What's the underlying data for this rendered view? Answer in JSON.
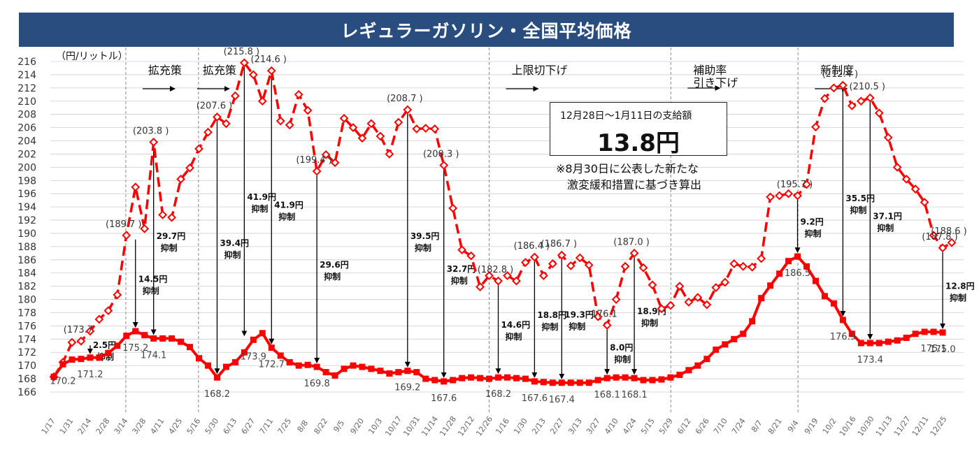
{
  "title": "レギュラーガソリン・全国平均価格",
  "unit_label": "（円/リットル）",
  "box": {
    "label": "12月28日～1月11日の支給額",
    "value": "13.8円"
  },
  "note": [
    "※8月30日に公表した新たな",
    "激変緩和措置に基づき算出"
  ],
  "colors": {
    "series": "#ff0000",
    "title_bg": "#2a4d80",
    "grid": "#cccccc",
    "arrow": "#000000"
  },
  "chart_data": {
    "type": "line",
    "title": "レギュラーガソリン・全国平均価格",
    "ylabel": "（円/リットル）",
    "ylim": [
      166,
      216
    ],
    "yticks": [
      166,
      168,
      170,
      172,
      174,
      176,
      178,
      180,
      182,
      184,
      186,
      188,
      190,
      192,
      194,
      196,
      198,
      200,
      202,
      204,
      206,
      208,
      210,
      212,
      214,
      216
    ],
    "x_tick_labels": [
      "1/17",
      "1/31",
      "2/14",
      "2/28",
      "3/14",
      "3/28",
      "4/11",
      "4/25",
      "5/16",
      "5/30",
      "6/13",
      "6/27",
      "7/11",
      "7/25",
      "8/8",
      "8/22",
      "9/5",
      "9/20",
      "10/3",
      "10/17",
      "10/31",
      "11/14",
      "11/28",
      "12/12",
      "12/26",
      "1/16",
      "1/30",
      "2/13",
      "2/27",
      "3/13",
      "3/27",
      "4/10",
      "4/24",
      "5/15",
      "5/29",
      "6/12",
      "6/26",
      "7/10",
      "7/24",
      "8/7",
      "8/21",
      "9/4",
      "9/19",
      "10/2",
      "10/16",
      "10/30",
      "11/13",
      "11/27",
      "12/11",
      "12/25"
    ],
    "period_lines_at": [
      "3/14",
      "5/16",
      "12/26",
      "5/29",
      "9/4"
    ],
    "period_labels": [
      {
        "text": "拡充策",
        "at": "3/28"
      },
      {
        "text": "拡充策",
        "at": "5/16"
      },
      {
        "text": "上限切下げ",
        "at": "1/16"
      },
      {
        "text": "補助率",
        "text2": "引き下げ",
        "at": "6/12"
      },
      {
        "text": "新制度",
        "at": "9/19"
      }
    ],
    "series": [
      {
        "name": "",
        "style": "dashed-diamond",
        "values": [
          168.3,
          170.5,
          173.5,
          173.7,
          175.2,
          177.0,
          178.3,
          180.7,
          189.7,
          197.0,
          190.7,
          203.8,
          192.8,
          192.4,
          198.2,
          199.9,
          202.8,
          205.3,
          207.6,
          206.6,
          210.8,
          215.8,
          214.0,
          210.0,
          214.6,
          207.0,
          206.4,
          211.0,
          208.6,
          199.4,
          201.9,
          200.7,
          207.4,
          206.0,
          204.4,
          206.6,
          204.7,
          202.0,
          206.8,
          208.7,
          205.8,
          205.9,
          205.8,
          200.3,
          193.8,
          187.5,
          186.6,
          181.9,
          183.6,
          182.8,
          183.6,
          182.8,
          185.6,
          186.4,
          183.6,
          185.4,
          186.7,
          185.1,
          186.3,
          185.2,
          177.4,
          176.1,
          180.0,
          185.0,
          187.0,
          184.8,
          182.2,
          178.6,
          179.1,
          182.0,
          179.6,
          180.3,
          179.2,
          181.8,
          182.6,
          185.4,
          185.0,
          184.9,
          186.2,
          195.5,
          195.7,
          196.0,
          195.7,
          197.4,
          206.1,
          210.4,
          212.0,
          212.4,
          209.3,
          210.0,
          210.5,
          208.2,
          204.5,
          200.0,
          198.2,
          196.7,
          194.7,
          189.7,
          187.8,
          188.6
        ]
      },
      {
        "name": "",
        "style": "solid-square",
        "values": [
          168.3,
          170.2,
          170.9,
          171.0,
          171.2,
          171.2,
          171.9,
          173.0,
          174.5,
          175.2,
          174.6,
          174.1,
          174.1,
          174.1,
          173.6,
          172.8,
          171.1,
          170.0,
          168.2,
          169.8,
          170.5,
          172.0,
          173.9,
          174.9,
          172.7,
          171.5,
          170.5,
          170.0,
          170.1,
          169.8,
          169.0,
          168.5,
          169.5,
          170.0,
          169.8,
          169.5,
          169.2,
          168.8,
          169.0,
          169.2,
          169.0,
          168.0,
          167.8,
          167.6,
          167.8,
          168.1,
          168.2,
          168.1,
          168.0,
          168.2,
          168.2,
          168.1,
          168.0,
          167.6,
          167.5,
          167.4,
          167.4,
          167.4,
          167.4,
          167.4,
          167.8,
          168.1,
          168.2,
          168.2,
          168.1,
          167.8,
          167.8,
          167.9,
          168.2,
          168.6,
          169.3,
          170.0,
          171.0,
          172.4,
          173.2,
          174.0,
          174.8,
          176.7,
          180.2,
          182.1,
          183.9,
          185.8,
          186.5,
          185.0,
          182.8,
          180.5,
          179.4,
          176.9,
          174.8,
          173.4,
          173.4,
          173.4,
          173.6,
          173.8,
          174.2,
          174.8,
          175.1,
          175.1,
          175.0
        ]
      }
    ],
    "data_labels": [
      {
        "series": 0,
        "i": 3,
        "text": "(173.7"
      },
      {
        "series": 0,
        "i": 8,
        "text": "(189.7 )"
      },
      {
        "series": 0,
        "i": 11,
        "text": "(203.8 )"
      },
      {
        "series": 0,
        "i": 18,
        "text": "(207.6 )"
      },
      {
        "series": 0,
        "i": 21,
        "text": "(215.8 )"
      },
      {
        "series": 0,
        "i": 24,
        "text": "(214.6 )"
      },
      {
        "series": 0,
        "i": 29,
        "text": "(199.4 )"
      },
      {
        "series": 0,
        "i": 39,
        "text": "(208.7 )"
      },
      {
        "series": 0,
        "i": 43,
        "text": "(200.3 )"
      },
      {
        "series": 0,
        "i": 49,
        "text": "(182.8 )"
      },
      {
        "series": 0,
        "i": 53,
        "text": "(186.4 )"
      },
      {
        "series": 0,
        "i": 56,
        "text": "(186.7 )"
      },
      {
        "series": 0,
        "i": 61,
        "text": "176.1"
      },
      {
        "series": 0,
        "i": 64,
        "text": "(187.0 )"
      },
      {
        "series": 0,
        "i": 82,
        "text": "(195.7 )"
      },
      {
        "series": 0,
        "i": 87,
        "text": "(212.4 )"
      },
      {
        "series": 0,
        "i": 90,
        "text": "(210.5 )"
      },
      {
        "series": 0,
        "i": 98,
        "text": "(187.8 )"
      },
      {
        "series": 0,
        "i": 99,
        "text": "(188.6 )"
      },
      {
        "series": 1,
        "i": 1,
        "text": "170.2"
      },
      {
        "series": 1,
        "i": 4,
        "text": "171.2"
      },
      {
        "series": 1,
        "i": 9,
        "text": "175.2"
      },
      {
        "series": 1,
        "i": 11,
        "text": "174.1"
      },
      {
        "series": 1,
        "i": 18,
        "text": "168.2"
      },
      {
        "series": 1,
        "i": 22,
        "text": "173.9"
      },
      {
        "series": 1,
        "i": 24,
        "text": "172.7"
      },
      {
        "series": 1,
        "i": 29,
        "text": "169.8"
      },
      {
        "series": 1,
        "i": 39,
        "text": "169.2"
      },
      {
        "series": 1,
        "i": 43,
        "text": "167.6"
      },
      {
        "series": 1,
        "i": 49,
        "text": "168.2"
      },
      {
        "series": 1,
        "i": 53,
        "text": "167.6"
      },
      {
        "series": 1,
        "i": 56,
        "text": "167.4"
      },
      {
        "series": 1,
        "i": 61,
        "text": "168.1"
      },
      {
        "series": 1,
        "i": 64,
        "text": "168.1"
      },
      {
        "series": 1,
        "i": 82,
        "text": "186.5"
      },
      {
        "series": 1,
        "i": 87,
        "text": "176.9"
      },
      {
        "series": 1,
        "i": 90,
        "text": "173.4"
      },
      {
        "series": 1,
        "i": 97,
        "text": "175.1"
      },
      {
        "series": 1,
        "i": 98,
        "text": "175.0"
      }
    ],
    "suppression_annotations": [
      {
        "i": 4,
        "from": 173.7,
        "to": 171.2,
        "amount": "2.5円",
        "label": "抑制"
      },
      {
        "i": 9,
        "from": 189.7,
        "to": 175.2,
        "amount": "14.5円",
        "label": "抑制"
      },
      {
        "i": 11,
        "from": 203.8,
        "to": 174.1,
        "amount": "29.7円",
        "label": "抑制"
      },
      {
        "i": 18,
        "from": 207.6,
        "to": 168.2,
        "amount": "39.4円",
        "label": "抑制"
      },
      {
        "i": 21,
        "from": 215.8,
        "to": 173.9,
        "amount": "41.9円",
        "label": "抑制"
      },
      {
        "i": 24,
        "from": 214.6,
        "to": 172.7,
        "amount": "41.9円",
        "label": "抑制"
      },
      {
        "i": 29,
        "from": 199.4,
        "to": 169.8,
        "amount": "29.6円",
        "label": "抑制"
      },
      {
        "i": 39,
        "from": 208.7,
        "to": 169.2,
        "amount": "39.5円",
        "label": "抑制"
      },
      {
        "i": 43,
        "from": 200.3,
        "to": 167.6,
        "amount": "32.7円",
        "label": "抑制"
      },
      {
        "i": 49,
        "from": 182.8,
        "to": 168.2,
        "amount": "14.6円",
        "label": "抑制"
      },
      {
        "i": 53,
        "from": 186.4,
        "to": 167.6,
        "amount": "18.8円",
        "label": "抑制"
      },
      {
        "i": 56,
        "from": 186.7,
        "to": 167.4,
        "amount": "19.3円",
        "label": "抑制"
      },
      {
        "i": 61,
        "from": 176.1,
        "to": 168.1,
        "amount": "8.0円",
        "label": "抑制"
      },
      {
        "i": 64,
        "from": 187.0,
        "to": 168.1,
        "amount": "18.9円",
        "label": "抑制"
      },
      {
        "i": 82,
        "from": 195.7,
        "to": 186.5,
        "amount": "9.2円",
        "label": "抑制"
      },
      {
        "i": 87,
        "from": 212.4,
        "to": 176.9,
        "amount": "35.5円",
        "label": "抑制"
      },
      {
        "i": 90,
        "from": 210.5,
        "to": 173.4,
        "amount": "37.1円",
        "label": "抑制"
      },
      {
        "i": 98,
        "from": 187.8,
        "to": 175.0,
        "amount": "12.8円",
        "label": "抑制"
      }
    ],
    "grid": true,
    "legend": "none"
  }
}
